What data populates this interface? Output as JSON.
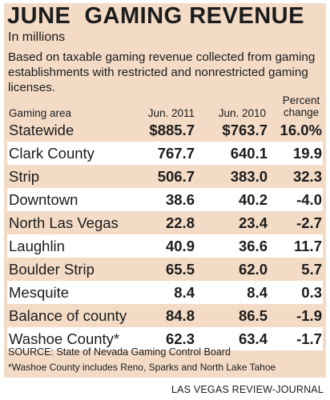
{
  "header": {
    "title": "JUNE  GAMING REVENUE",
    "subtitle": "In millions",
    "description": "Based on taxable gaming revenue collected from gaming establishments with restricted and nonrestricted gaming licenses."
  },
  "columns": {
    "area": "Gaming area",
    "y2011": "Jun. 2011",
    "y2010": "Jun. 2010",
    "pct": "Percent change"
  },
  "chart_data": {
    "type": "table",
    "columns": [
      "Gaming area",
      "Jun. 2011",
      "Jun. 2010",
      "Percent change"
    ],
    "rows": [
      {
        "area": "Statewide",
        "jun2011": "$885.7",
        "jun2010": "$763.7",
        "pct": "16.0%"
      },
      {
        "area": "Clark County",
        "jun2011": "767.7",
        "jun2010": "640.1",
        "pct": "19.9"
      },
      {
        "area": "Strip",
        "jun2011": "506.7",
        "jun2010": "383.0",
        "pct": "32.3"
      },
      {
        "area": "Downtown",
        "jun2011": "38.6",
        "jun2010": "40.2",
        "pct": "-4.0"
      },
      {
        "area": "North Las Vegas",
        "jun2011": "22.8",
        "jun2010": "23.4",
        "pct": "-2.7"
      },
      {
        "area": "Laughlin",
        "jun2011": "40.9",
        "jun2010": "36.6",
        "pct": "11.7"
      },
      {
        "area": "Boulder Strip",
        "jun2011": "65.5",
        "jun2010": "62.0",
        "pct": "5.7"
      },
      {
        "area": "Mesquite",
        "jun2011": "8.4",
        "jun2010": "8.4",
        "pct": "0.3"
      },
      {
        "area": "Balance of county",
        "jun2011": "84.8",
        "jun2010": "86.5",
        "pct": "-1.9"
      },
      {
        "area": "Washoe County*",
        "jun2011": "62.3",
        "jun2010": "63.4",
        "pct": "-1.7"
      }
    ]
  },
  "footer": {
    "source": "SOURCE: State of Nevada Gaming Control Board",
    "footnote": "*Washoe County includes Reno, Sparks and North Lake Tahoe",
    "credit": "LAS VEGAS REVIEW-JOURNAL"
  },
  "colors": {
    "panel": "#f3dbc6",
    "row_highlight": "#ffffff",
    "text": "#1c1c1c"
  }
}
